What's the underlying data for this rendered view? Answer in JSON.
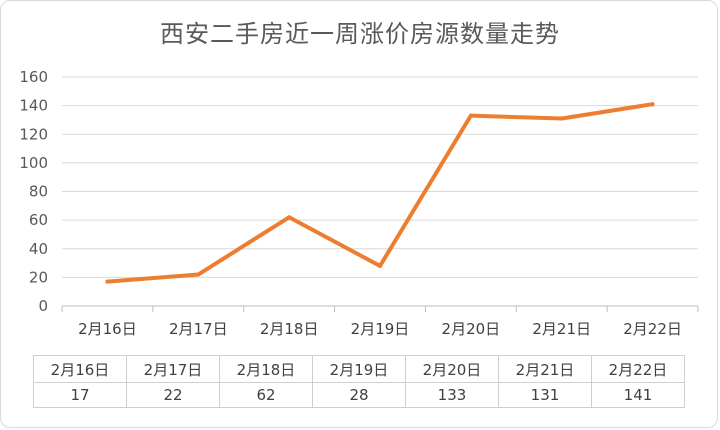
{
  "chart_data": {
    "type": "line",
    "title": "西安二手房近一周涨价房源数量走势",
    "categories": [
      "2月16日",
      "2月17日",
      "2月18日",
      "2月19日",
      "2月20日",
      "2月21日",
      "2月22日"
    ],
    "series": [
      {
        "values": [
          17,
          22,
          62,
          28,
          133,
          131,
          141
        ],
        "color": "#ED7D31"
      }
    ],
    "ylim": [
      0,
      160
    ],
    "yticks": [
      "0",
      "20",
      "40",
      "60",
      "80",
      "100",
      "120",
      "140",
      "160"
    ],
    "grid": true,
    "legend": "none",
    "data_table": true
  },
  "table": {
    "values": [
      "17",
      "22",
      "62",
      "28",
      "133",
      "131",
      "141"
    ]
  }
}
